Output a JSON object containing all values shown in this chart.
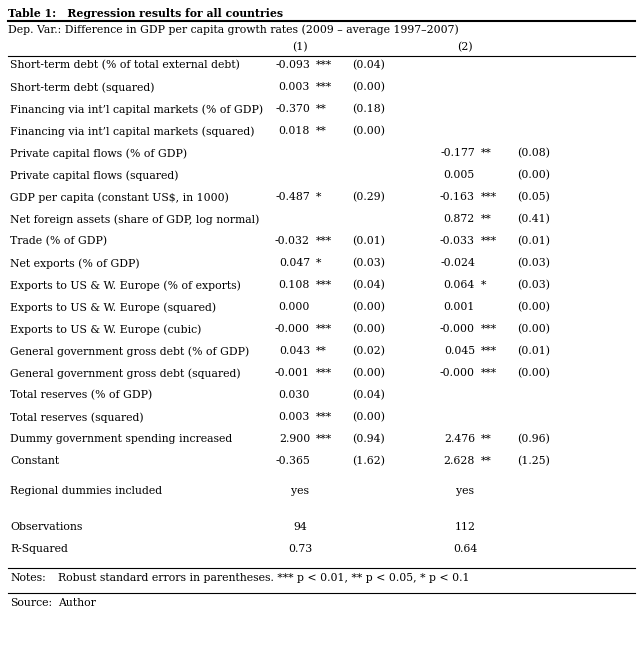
{
  "title": "Table 1:   Regression results for all countries",
  "dep_var_text": "Dep. Var.: Difference in GDP per capita growth rates (2009 – average 1997–2007)",
  "col_headers": [
    "(1)",
    "(2)"
  ],
  "rows": [
    {
      "label": "Short-term debt (% of total external debt)",
      "c1": "-0.093",
      "s1": "***",
      "se1": "(0.04)",
      "c2": "",
      "s2": "",
      "se2": ""
    },
    {
      "label": "Short-term debt (squared)",
      "c1": "0.003",
      "s1": "***",
      "se1": "(0.00)",
      "c2": "",
      "s2": "",
      "se2": ""
    },
    {
      "label": "Financing via int’l capital markets (% of GDP)",
      "c1": "-0.370",
      "s1": "**",
      "se1": "(0.18)",
      "c2": "",
      "s2": "",
      "se2": ""
    },
    {
      "label": "Financing via int’l capital markets (squared)",
      "c1": "0.018",
      "s1": "**",
      "se1": "(0.00)",
      "c2": "",
      "s2": "",
      "se2": ""
    },
    {
      "label": "Private capital flows (% of GDP)",
      "c1": "",
      "s1": "",
      "se1": "",
      "c2": "-0.177",
      "s2": "**",
      "se2": "(0.08)"
    },
    {
      "label": "Private capital flows (squared)",
      "c1": "",
      "s1": "",
      "se1": "",
      "c2": "0.005",
      "s2": "",
      "se2": "(0.00)"
    },
    {
      "label": "GDP per capita (constant US$, in 1000)",
      "c1": "-0.487",
      "s1": "*",
      "se1": "(0.29)",
      "c2": "-0.163",
      "s2": "***",
      "se2": "(0.05)"
    },
    {
      "label": "Net foreign assets (share of GDP, log normal)",
      "c1": "",
      "s1": "",
      "se1": "",
      "c2": "0.872",
      "s2": "**",
      "se2": "(0.41)"
    },
    {
      "label": "Trade (% of GDP)",
      "c1": "-0.032",
      "s1": "***",
      "se1": "(0.01)",
      "c2": "-0.033",
      "s2": "***",
      "se2": "(0.01)"
    },
    {
      "label": "Net exports (% of GDP)",
      "c1": "0.047",
      "s1": "*",
      "se1": "(0.03)",
      "c2": "-0.024",
      "s2": "",
      "se2": "(0.03)"
    },
    {
      "label": "Exports to US & W. Europe (% of exports)",
      "c1": "0.108",
      "s1": "***",
      "se1": "(0.04)",
      "c2": "0.064",
      "s2": "*",
      "se2": "(0.03)"
    },
    {
      "label": "Exports to US & W. Europe (squared)",
      "c1": "0.000",
      "s1": "",
      "se1": "(0.00)",
      "c2": "0.001",
      "s2": "",
      "se2": "(0.00)"
    },
    {
      "label": "Exports to US & W. Europe (cubic)",
      "c1": "-0.000",
      "s1": "***",
      "se1": "(0.00)",
      "c2": "-0.000",
      "s2": "***",
      "se2": "(0.00)"
    },
    {
      "label": "General government gross debt (% of GDP)",
      "c1": "0.043",
      "s1": "**",
      "se1": "(0.02)",
      "c2": "0.045",
      "s2": "***",
      "se2": "(0.01)"
    },
    {
      "label": "General government gross debt (squared)",
      "c1": "-0.001",
      "s1": "***",
      "se1": "(0.00)",
      "c2": "-0.000",
      "s2": "***",
      "se2": "(0.00)"
    },
    {
      "label": "Total reserves (% of GDP)",
      "c1": "0.030",
      "s1": "",
      "se1": "(0.04)",
      "c2": "",
      "s2": "",
      "se2": ""
    },
    {
      "label": "Total reserves (squared)",
      "c1": "0.003",
      "s1": "***",
      "se1": "(0.00)",
      "c2": "",
      "s2": "",
      "se2": ""
    },
    {
      "label": "Dummy government spending increased",
      "c1": "2.900",
      "s1": "***",
      "se1": "(0.94)",
      "c2": "2.476",
      "s2": "**",
      "se2": "(0.96)"
    },
    {
      "label": "Constant",
      "c1": "-0.365",
      "s1": "",
      "se1": "(1.62)",
      "c2": "2.628",
      "s2": "**",
      "se2": "(1.25)"
    }
  ],
  "regional_dummies": {
    "c1": "yes",
    "c2": "yes"
  },
  "observations": {
    "c1": "94",
    "c2": "112"
  },
  "r_squared": {
    "c1": "0.73",
    "c2": "0.64"
  },
  "notes_label": "Notes:",
  "notes_text": "Robust standard errors in parentheses. *** p < 0.01, ** p < 0.05, * p < 0.1",
  "source_label": "Source:",
  "source_text": "Author",
  "bg_color": "#FFFFFF",
  "text_color": "#000000",
  "font_size": 7.8
}
